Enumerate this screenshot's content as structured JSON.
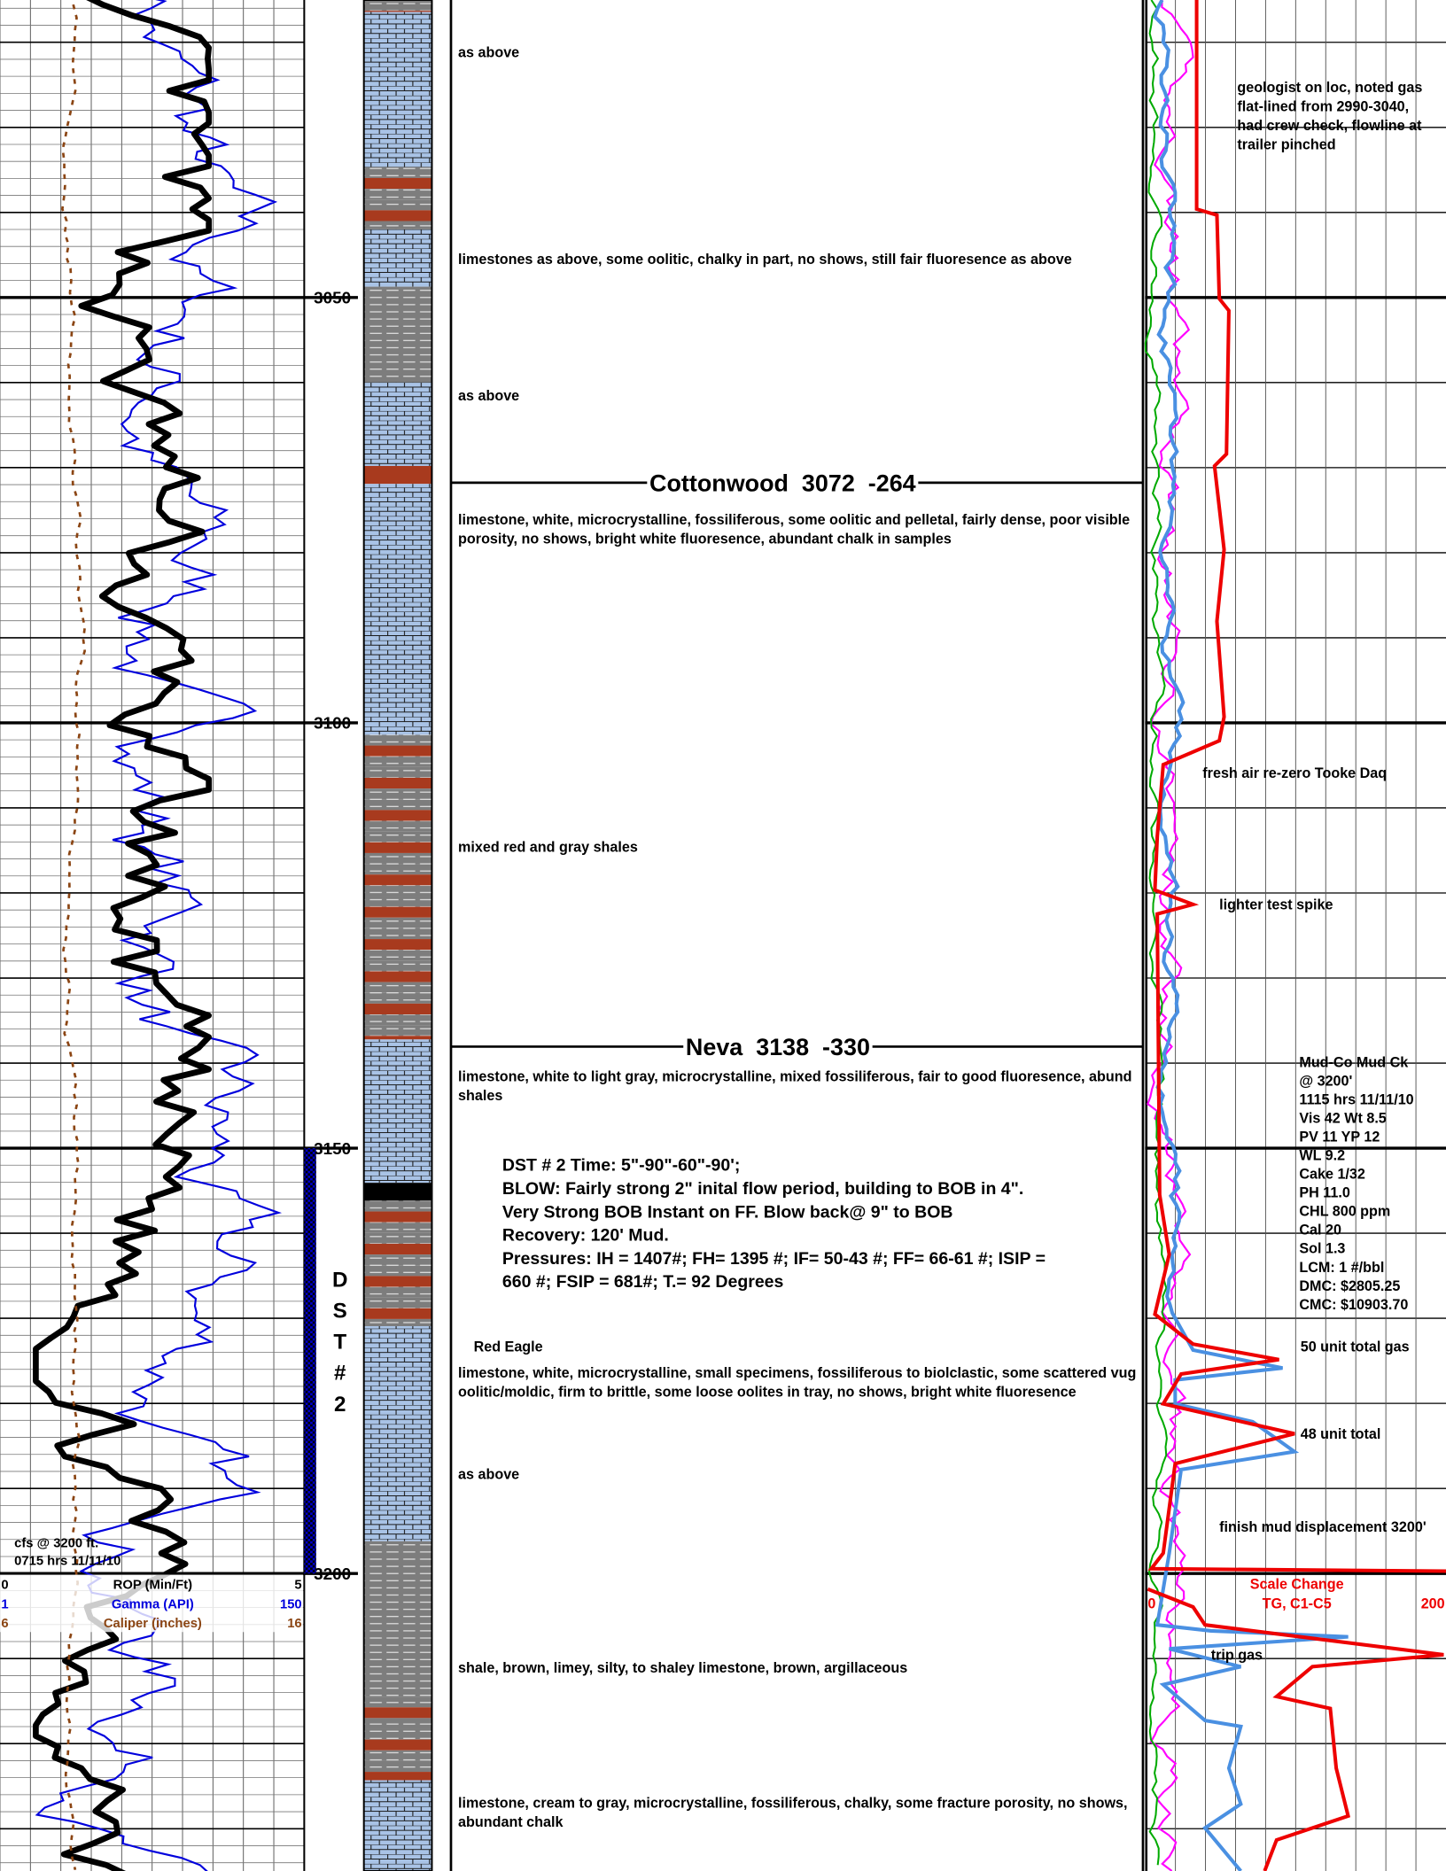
{
  "depth_labels": [
    3050,
    3100,
    3150,
    3200
  ],
  "left_track": {
    "scales": [
      {
        "min": "0",
        "name": "ROP (Min/Ft)",
        "max": "5"
      },
      {
        "min": "1",
        "name": "Gamma (API)",
        "max": "150"
      },
      {
        "min": "6",
        "name": "Caliper (inches)",
        "max": "16"
      }
    ],
    "note": [
      "cfs @ 3200 ft.",
      "0715 hrs 11/11/10"
    ]
  },
  "dst_label": [
    "D",
    "S",
    "T",
    "#",
    "2"
  ],
  "formations": [
    "Cottonwood  3072  -264",
    "Neva  3138  -330"
  ],
  "descriptions": [
    [
      "as above"
    ],
    [
      "limestones as above, some oolitic, chalky in part, no shows, still fair fluoresence as above"
    ],
    [
      "as above"
    ],
    [
      "limestone, white, microcrystalline, fossiliferous, some oolitic and pelletal, fairly dense, poor visible",
      "porosity, no shows, bright white fluoresence, abundant chalk in samples"
    ],
    [
      "mixed red and gray shales"
    ],
    [
      "limestone, white to light gray, microcrystalline, mixed fossiliferous, fair to good fluoresence, abund",
      "shales"
    ],
    [
      "Red Eagle"
    ],
    [
      "limestone, white, microcrystalline, small specimens, fossiliferous to biolclastic, some scattered vug",
      "oolitic/moldic, firm to brittle, some loose oolites in tray, no shows, bright white fluoresence"
    ],
    [
      "as above"
    ],
    [
      "shale, brown, limey, silty, to shaley limestone, brown, argillaceous"
    ],
    [
      "limestone, cream to gray, microcrystalline, fossiliferous, chalky, some fracture porosity, no shows,",
      "abundant chalk"
    ]
  ],
  "dst_report": [
    "DST # 2  Time: 5\"-90\"-60\"-90';",
    "BLOW: Fairly strong 2\" inital flow period, building to BOB in 4\".",
    "Very Strong  BOB Instant on FF.  Blow  back@ 9\" to BOB",
    "Recovery:  120' Mud.",
    "Pressures: IH = 1407#; FH= 1395 #;  IF= 50-43 #; FF= 66-61 #; ISIP =",
    "660 #; FSIP = 681#; T.= 92 Degrees"
  ],
  "right_track": {
    "annotations": [
      [
        "geologist on loc, noted gas",
        "flat-lined from 2990-3040,",
        "had crew check, flowline at",
        "trailer pinched"
      ],
      [
        "fresh air re-zero Tooke Daq"
      ],
      [
        "lighter test spike"
      ],
      [
        "50 unit total gas"
      ],
      [
        "48 unit total"
      ],
      [
        "finish mud displacement 3200'"
      ],
      [
        "trip gas"
      ]
    ],
    "mud_check": [
      "Mud-Co Mud Ck",
      "@ 3200'",
      "1115 hrs  11/11/10",
      "Vis 42   Wt 8.5",
      "PV 11 YP 12",
      "WL 9.2",
      "Cake 1/32",
      "PH  11.0",
      "CHL 800 ppm",
      "Cal 20",
      "Sol 1.3",
      "LCM: 1 #/bbl",
      "DMC: $2805.25",
      "CMC: $10903.70"
    ],
    "scale_change": {
      "title": "Scale Change",
      "name": "TG, C1-C5",
      "min": "0",
      "max": "200"
    }
  }
}
